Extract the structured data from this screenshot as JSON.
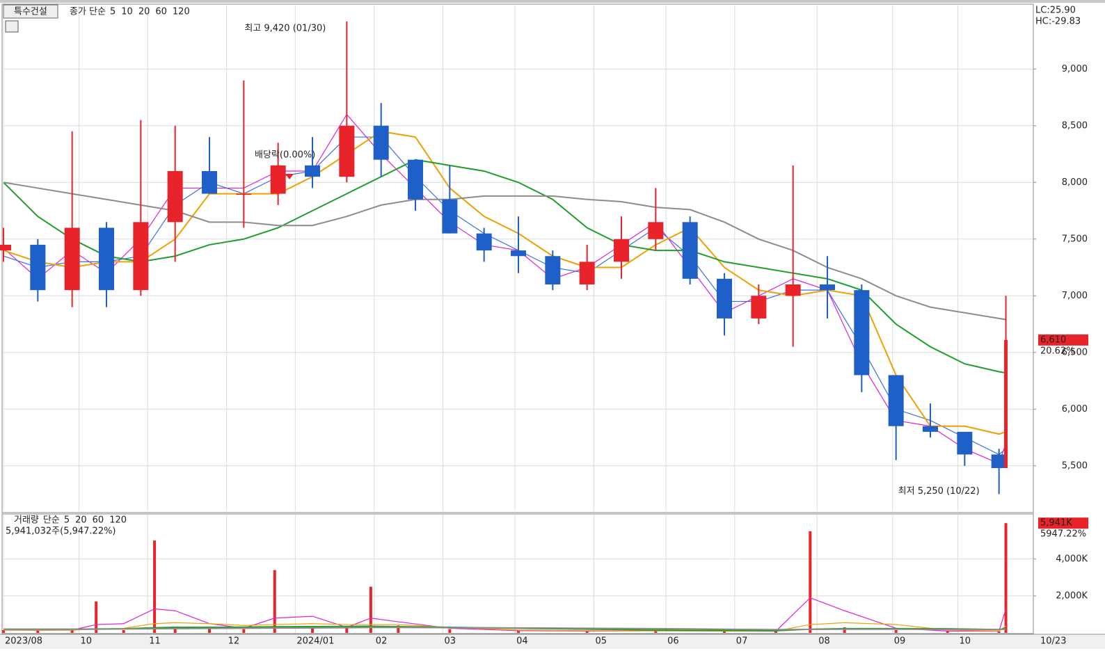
{
  "chart_data": [
    {
      "type": "candlestick",
      "title": "특수건설",
      "legend_title": "종가 단순",
      "x": [
        0,
        10,
        20,
        30,
        40,
        50,
        60,
        70,
        80,
        90,
        100,
        110,
        120,
        130,
        140,
        150,
        160,
        170,
        180,
        190,
        200,
        210,
        220,
        230,
        240,
        250,
        260,
        270,
        280,
        290,
        292
      ],
      "open": [
        7400,
        7450,
        7050,
        7600,
        7050,
        7650,
        8100,
        7900,
        7900,
        8150,
        8050,
        8500,
        8200,
        7850,
        7550,
        7400,
        7350,
        7100,
        7300,
        7500,
        7650,
        7150,
        6800,
        7000,
        7100,
        7050,
        6300,
        5850,
        5800,
        5600,
        5480
      ],
      "high": [
        7600,
        7500,
        8450,
        7650,
        8550,
        8500,
        8400,
        8900,
        8350,
        8400,
        9420,
        8700,
        8200,
        8150,
        7600,
        7700,
        7400,
        7450,
        7700,
        7950,
        7700,
        7200,
        7100,
        8150,
        7350,
        7100,
        6300,
        6050,
        5800,
        5650,
        7000
      ],
      "low": [
        7300,
        6950,
        6900,
        6900,
        7000,
        7300,
        7900,
        7600,
        7800,
        7950,
        8000,
        8050,
        7750,
        7550,
        7300,
        7200,
        7050,
        7050,
        7150,
        7400,
        7100,
        6650,
        6750,
        6550,
        6800,
        6150,
        5550,
        5750,
        5500,
        5250,
        5480
      ],
      "close": [
        7450,
        7050,
        7600,
        7050,
        7650,
        8100,
        7900,
        7900,
        8150,
        8050,
        8500,
        8200,
        7850,
        7550,
        7400,
        7350,
        7100,
        7300,
        7500,
        7650,
        7150,
        6800,
        7000,
        7100,
        7050,
        6300,
        5850,
        5800,
        5600,
        5480,
        6610
      ],
      "up_color": "#e8242a",
      "down_color": "#1f5fc8",
      "series": [
        {
          "name": "5",
          "color": "#e020d8",
          "values": [
            7420,
            7150,
            7400,
            7200,
            7500,
            7950,
            7950,
            7950,
            8100,
            8100,
            8600,
            8250,
            7950,
            7650,
            7450,
            7400,
            7150,
            7250,
            7450,
            7650,
            7250,
            6850,
            7000,
            7150,
            7050,
            6400,
            5900,
            5850,
            5650,
            5520,
            5700
          ]
        },
        {
          "name": "10",
          "color": "#3a6ee8",
          "values": [
            7350,
            7250,
            7300,
            7300,
            7350,
            7800,
            8000,
            7900,
            8050,
            8100,
            8400,
            8400,
            8050,
            7750,
            7550,
            7400,
            7250,
            7200,
            7400,
            7600,
            7350,
            6950,
            6950,
            7050,
            7050,
            6550,
            6000,
            5900,
            5750,
            5600,
            5650
          ]
        },
        {
          "name": "20",
          "color": "#f0a000",
          "values": [
            7400,
            7300,
            7250,
            7300,
            7300,
            7500,
            7900,
            7900,
            7900,
            8050,
            8250,
            8450,
            8400,
            7950,
            7700,
            7550,
            7350,
            7250,
            7250,
            7450,
            7600,
            7250,
            7050,
            7000,
            7050,
            7000,
            6300,
            5850,
            5850,
            5780,
            5800
          ]
        },
        {
          "name": "60",
          "color": "#1f9e2a",
          "values": [
            8000,
            7700,
            7500,
            7350,
            7300,
            7350,
            7450,
            7500,
            7600,
            7750,
            7900,
            8050,
            8200,
            8150,
            8100,
            8000,
            7850,
            7600,
            7450,
            7400,
            7400,
            7300,
            7250,
            7200,
            7150,
            7050,
            6750,
            6550,
            6400,
            6330,
            6320
          ]
        },
        {
          "name": "120",
          "color": "#8c8c8c",
          "values": [
            8000,
            7950,
            7900,
            7850,
            7800,
            7750,
            7650,
            7650,
            7620,
            7620,
            7700,
            7800,
            7850,
            7850,
            7880,
            7880,
            7880,
            7850,
            7830,
            7780,
            7760,
            7650,
            7500,
            7400,
            7250,
            7150,
            7000,
            6900,
            6850,
            6800,
            6790
          ]
        }
      ],
      "ylim": [
        5100,
        9560
      ],
      "yticks": [
        {
          "value": 5500,
          "label": "5,500"
        },
        {
          "value": 6000,
          "label": "6,000"
        },
        {
          "value": 6500,
          "label": "6,500"
        },
        {
          "value": 7000,
          "label": "7,000"
        },
        {
          "value": 7500,
          "label": "7,500"
        },
        {
          "value": 8000,
          "label": "8,000"
        },
        {
          "value": 8500,
          "label": "8,500"
        },
        {
          "value": 9000,
          "label": "9,000"
        }
      ],
      "xlim": [
        0,
        300
      ],
      "high_label": "최고 9,420 (01/30)",
      "low_label": "최저 5,250 (10/22)",
      "dividend_label": "배당락(0.00%)",
      "lc_label": "LC:25.90",
      "hc_label": "HC:-29.83",
      "last_price": {
        "value": 6610,
        "label": "6,610"
      },
      "change_label": "20.62%",
      "grid": true
    },
    {
      "type": "bar",
      "title": "거래량",
      "legend_title": "단순",
      "info_label": "5,941,032주(5,947.22%)",
      "x": [
        0,
        10,
        20,
        27,
        35,
        44,
        50,
        60,
        70,
        79,
        90,
        100,
        107,
        115,
        130,
        150,
        170,
        190,
        210,
        225,
        235,
        245,
        260,
        275,
        290,
        292
      ],
      "values": [
        150,
        120,
        180,
        1700,
        150,
        5000,
        300,
        250,
        200,
        3400,
        250,
        300,
        2500,
        400,
        200,
        100,
        80,
        120,
        80,
        90,
        5500,
        300,
        150,
        80,
        80,
        5941
      ],
      "color": "#e8242a",
      "series": [
        {
          "name": "5",
          "color": "#e020d8",
          "values": [
            150,
            140,
            150,
            450,
            500,
            1300,
            1200,
            500,
            250,
            800,
            900,
            300,
            800,
            600,
            250,
            120,
            100,
            110,
            100,
            90,
            1900,
            1200,
            250,
            100,
            90,
            1300
          ]
        },
        {
          "name": "20",
          "color": "#f0a000",
          "values": [
            150,
            150,
            150,
            200,
            250,
            500,
            550,
            500,
            400,
            450,
            500,
            450,
            450,
            450,
            300,
            150,
            120,
            110,
            100,
            100,
            450,
            550,
            450,
            150,
            100,
            380
          ]
        },
        {
          "name": "60",
          "color": "#1f9e2a",
          "values": [
            200,
            200,
            200,
            210,
            220,
            280,
            300,
            300,
            310,
            330,
            340,
            350,
            360,
            340,
            300,
            250,
            200,
            150,
            130,
            120,
            200,
            230,
            230,
            220,
            180,
            250
          ]
        },
        {
          "name": "120",
          "color": "#8c8c8c",
          "values": [
            200,
            200,
            200,
            200,
            210,
            220,
            230,
            240,
            250,
            260,
            270,
            280,
            290,
            290,
            280,
            270,
            250,
            230,
            200,
            180,
            190,
            200,
            200,
            190,
            180,
            200
          ]
        }
      ],
      "ylim": [
        0,
        6400
      ],
      "yticks": [
        {
          "value": 2000,
          "label": "2,000K"
        },
        {
          "value": 4000,
          "label": "4,000K"
        }
      ],
      "xlim": [
        0,
        300
      ],
      "last_volume": {
        "value": 5941,
        "label": "5,941K"
      },
      "volume_change_label": "5947.22%",
      "xticks": [
        {
          "value": 0,
          "label": "2023/08"
        },
        {
          "value": 22,
          "label": "10"
        },
        {
          "value": 42,
          "label": "11"
        },
        {
          "value": 65,
          "label": "12"
        },
        {
          "value": 85,
          "label": "2024/01"
        },
        {
          "value": 108,
          "label": "02"
        },
        {
          "value": 128,
          "label": "03"
        },
        {
          "value": 149,
          "label": "04"
        },
        {
          "value": 172,
          "label": "05"
        },
        {
          "value": 193,
          "label": "06"
        },
        {
          "value": 213,
          "label": "07"
        },
        {
          "value": 237,
          "label": "08"
        },
        {
          "value": 259,
          "label": "09"
        },
        {
          "value": 278,
          "label": "10"
        }
      ],
      "current_date": "10/23",
      "grid": true
    }
  ]
}
